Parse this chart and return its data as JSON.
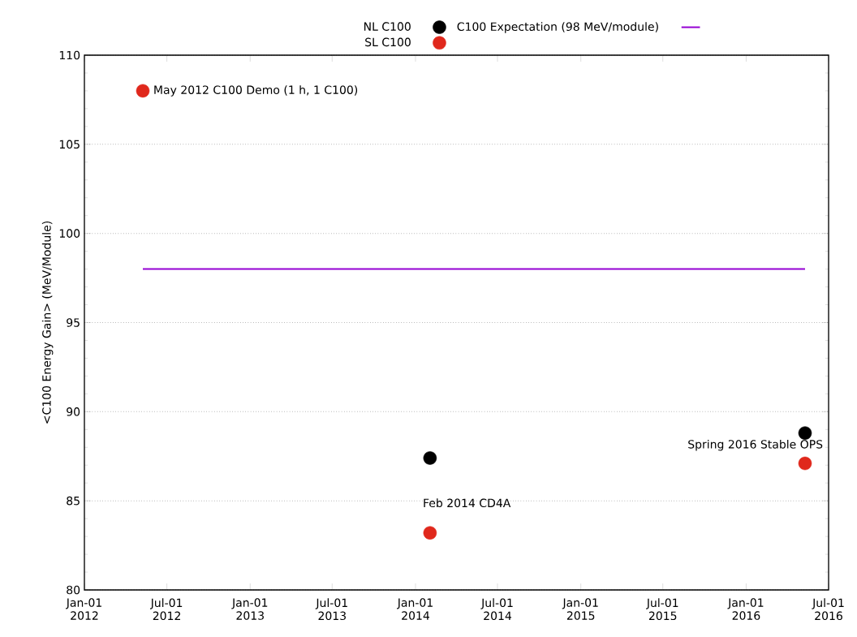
{
  "chart_data": {
    "type": "scatter",
    "ylabel": "<C100 Energy Gain> (MeV/Module)",
    "x": [
      "2012-05-09",
      "2014-02-02",
      "2016-05-10"
    ],
    "series": [
      {
        "name": "NL C100",
        "color": "#000000",
        "marker": "circle",
        "values": [
          null,
          87.4,
          88.8
        ]
      },
      {
        "name": "SL C100",
        "color": "#e0281c",
        "marker": "circle",
        "values": [
          108.0,
          83.2,
          87.1
        ]
      },
      {
        "name": "C100 Expectation (98 MeV/module)",
        "color": "#9400d3",
        "type": "line",
        "marker": "none",
        "x": [
          "2012-05-09",
          "2016-05-10"
        ],
        "values": [
          98,
          98
        ]
      }
    ],
    "xlim": [
      "2012-01-01",
      "2016-07-01"
    ],
    "xticks": [
      {
        "value": "2012-01-01",
        "label": "Jan-01 2012"
      },
      {
        "value": "2012-07-01",
        "label": "Jul-01 2012"
      },
      {
        "value": "2013-01-01",
        "label": "Jan-01 2013"
      },
      {
        "value": "2013-07-01",
        "label": "Jul-01 2013"
      },
      {
        "value": "2014-01-01",
        "label": "Jan-01 2014"
      },
      {
        "value": "2014-07-01",
        "label": "Jul-01 2014"
      },
      {
        "value": "2015-01-01",
        "label": "Jan-01 2015"
      },
      {
        "value": "2015-07-01",
        "label": "Jul-01 2015"
      },
      {
        "value": "2016-01-01",
        "label": "Jan-01 2016"
      },
      {
        "value": "2016-07-01",
        "label": "Jul-01 2016"
      }
    ],
    "ylim": [
      80,
      110
    ],
    "yticks": [
      80,
      85,
      90,
      95,
      100,
      105,
      110
    ],
    "grid": "y",
    "legend": "top",
    "annotations": [
      {
        "text": "May 2012 C100 Demo (1 h, 1 C100)",
        "x": "2012-05-09",
        "y": 108.0
      },
      {
        "text": "Feb 2014 CD4A",
        "x": "2014-02-02",
        "y": 83.2
      },
      {
        "text": "Spring 2016 Stable OPS",
        "x": "2016-05-10",
        "y": 87.1
      }
    ]
  }
}
